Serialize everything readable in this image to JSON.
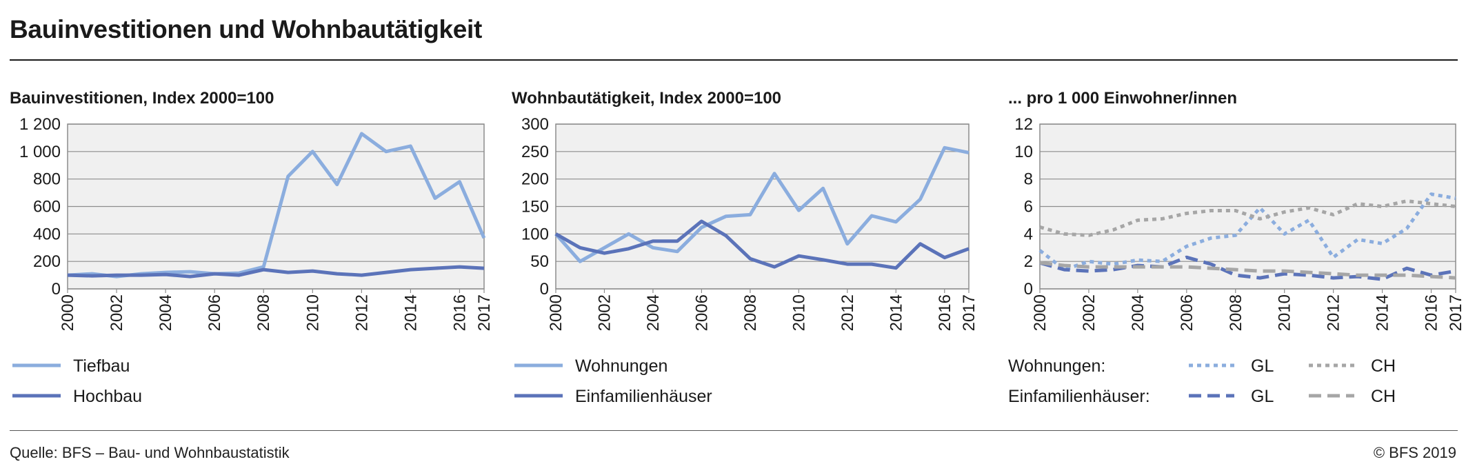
{
  "header": {
    "title": "Bauinvestitionen und Wohnbautätigkeit"
  },
  "footer": {
    "source": "Quelle: BFS – Bau- und Wohnbaustatistik",
    "copyright": "© BFS 2019"
  },
  "colors": {
    "light_blue": "#8badde",
    "dark_blue": "#5b73b9",
    "grey": "#a6a6a6",
    "plot_bg": "#f0f0f0",
    "grid": "#8c8c8c"
  },
  "chart_data": [
    {
      "type": "line",
      "title": "Bauinvestitionen, Index 2000=100",
      "xlabel": "",
      "ylabel": "",
      "x": [
        2000,
        2001,
        2002,
        2003,
        2004,
        2005,
        2006,
        2007,
        2008,
        2009,
        2010,
        2011,
        2012,
        2013,
        2014,
        2015,
        2016,
        2017
      ],
      "xticks": [
        "2000",
        "2002",
        "2004",
        "2006",
        "2008",
        "2010",
        "2012",
        "2014",
        "2016",
        "2017"
      ],
      "ylim": [
        0,
        1200
      ],
      "yticks": [
        0,
        200,
        400,
        600,
        800,
        1000,
        1200
      ],
      "yticklabels": [
        "0",
        "200",
        "400",
        "600",
        "800",
        "1 000",
        "1 200"
      ],
      "grid": true,
      "series": [
        {
          "name": "Tiefbau",
          "color": "light_blue",
          "dash": "solid",
          "values": [
            100,
            110,
            90,
            110,
            120,
            125,
            110,
            115,
            160,
            820,
            1000,
            760,
            1130,
            1000,
            1040,
            660,
            780,
            370
          ]
        },
        {
          "name": "Hochbau",
          "color": "dark_blue",
          "dash": "solid",
          "values": [
            100,
            95,
            100,
            100,
            105,
            90,
            110,
            100,
            140,
            120,
            130,
            110,
            100,
            120,
            140,
            150,
            160,
            150
          ]
        }
      ],
      "legend": {
        "placement": "bottom",
        "columns": 1
      }
    },
    {
      "type": "line",
      "title": "Wohnbautätigkeit, Index 2000=100",
      "xlabel": "",
      "ylabel": "",
      "x": [
        2000,
        2001,
        2002,
        2003,
        2004,
        2005,
        2006,
        2007,
        2008,
        2009,
        2010,
        2011,
        2012,
        2013,
        2014,
        2015,
        2016,
        2017
      ],
      "xticks": [
        "2000",
        "2002",
        "2004",
        "2006",
        "2008",
        "2010",
        "2012",
        "2014",
        "2016",
        "2017"
      ],
      "ylim": [
        0,
        300
      ],
      "yticks": [
        0,
        50,
        100,
        150,
        200,
        250,
        300
      ],
      "yticklabels": [
        "0",
        "50",
        "100",
        "150",
        "200",
        "250",
        "300"
      ],
      "grid": true,
      "series": [
        {
          "name": "Wohnungen",
          "color": "light_blue",
          "dash": "solid",
          "values": [
            100,
            50,
            75,
            100,
            75,
            68,
            112,
            132,
            135,
            210,
            143,
            183,
            82,
            133,
            122,
            163,
            257,
            248
          ]
        },
        {
          "name": "Einfamilienhäuser",
          "color": "dark_blue",
          "dash": "solid",
          "values": [
            100,
            75,
            65,
            73,
            87,
            87,
            123,
            97,
            55,
            40,
            60,
            53,
            45,
            45,
            38,
            82,
            57,
            73
          ]
        }
      ],
      "legend": {
        "placement": "bottom",
        "columns": 1
      }
    },
    {
      "type": "line",
      "title": "... pro 1 000 Einwohner/innen",
      "xlabel": "",
      "ylabel": "",
      "x": [
        2000,
        2001,
        2002,
        2003,
        2004,
        2005,
        2006,
        2007,
        2008,
        2009,
        2010,
        2011,
        2012,
        2013,
        2014,
        2015,
        2016,
        2017
      ],
      "xticks": [
        "2000",
        "2002",
        "2004",
        "2006",
        "2008",
        "2010",
        "2012",
        "2014",
        "2016",
        "2017"
      ],
      "ylim": [
        0,
        12
      ],
      "yticks": [
        0,
        2,
        4,
        6,
        8,
        10,
        12
      ],
      "yticklabels": [
        "0",
        "2",
        "4",
        "6",
        "8",
        "10",
        "12"
      ],
      "grid": true,
      "series": [
        {
          "name": "GL",
          "group": "Wohnungen",
          "color": "light_blue",
          "dash": "dotted",
          "values": [
            2.8,
            1.4,
            2.0,
            1.8,
            2.1,
            2.0,
            3.1,
            3.7,
            3.9,
            5.9,
            4.0,
            5.0,
            2.3,
            3.6,
            3.3,
            4.4,
            6.9,
            6.6
          ]
        },
        {
          "name": "CH",
          "group": "Wohnungen",
          "color": "grey",
          "dash": "dotted",
          "values": [
            4.5,
            4.0,
            3.9,
            4.3,
            5.0,
            5.1,
            5.5,
            5.7,
            5.7,
            5.1,
            5.6,
            5.9,
            5.4,
            6.2,
            6.0,
            6.4,
            6.2,
            6.0
          ]
        },
        {
          "name": "GL",
          "group": "Einfamilienhäuser",
          "color": "dark_blue",
          "dash": "dashed",
          "values": [
            1.9,
            1.4,
            1.3,
            1.4,
            1.7,
            1.6,
            2.3,
            1.8,
            1.0,
            0.8,
            1.1,
            1.0,
            0.8,
            0.9,
            0.7,
            1.5,
            1.0,
            1.3
          ]
        },
        {
          "name": "CH",
          "group": "Einfamilienhäuser",
          "color": "grey",
          "dash": "dashed",
          "values": [
            1.9,
            1.7,
            1.6,
            1.6,
            1.6,
            1.6,
            1.6,
            1.5,
            1.4,
            1.3,
            1.3,
            1.2,
            1.1,
            1.0,
            1.0,
            1.0,
            0.9,
            0.8
          ]
        }
      ],
      "legend": {
        "placement": "bottom",
        "groups": [
          "Wohnungen:",
          "Einfamilienhäuser:"
        ]
      }
    }
  ]
}
